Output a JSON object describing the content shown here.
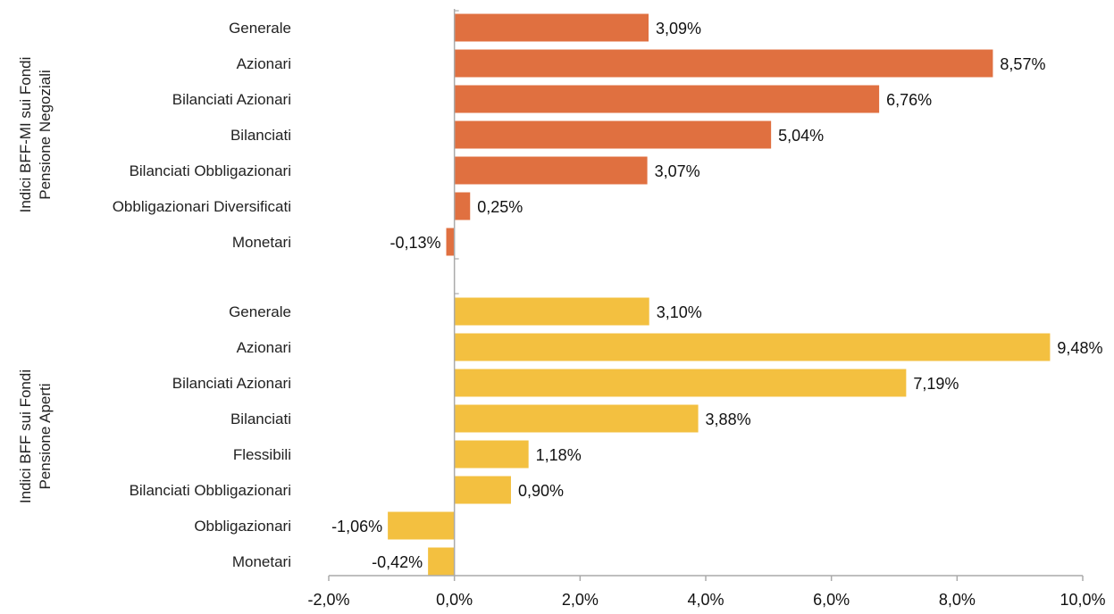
{
  "colors": {
    "group1_bar": "#E07040",
    "group2_bar": "#F3C040",
    "axis": "#aaaaaa"
  },
  "chart_data": {
    "type": "bar",
    "orientation": "horizontal",
    "xlim": [
      -2.0,
      10.0
    ],
    "xticks": [
      -2.0,
      0.0,
      2.0,
      4.0,
      6.0,
      8.0,
      10.0
    ],
    "xtick_labels": [
      "-2,0%",
      "0,0%",
      "2,0%",
      "4,0%",
      "6,0%",
      "8,0%",
      "10,0%"
    ],
    "grid": false,
    "groups": [
      {
        "name_lines": [
          "Indici BFF-MI sui Fondi",
          "Pensione Negoziali"
        ],
        "color": "#E07040",
        "categories": [
          "Generale",
          "Azionari",
          "Bilanciati Azionari",
          "Bilanciati",
          "Bilanciati Obbligazionari",
          "Obbligazionari Diversificati",
          "Monetari"
        ],
        "values": [
          3.09,
          8.57,
          6.76,
          5.04,
          3.07,
          0.25,
          -0.13
        ],
        "value_labels": [
          "3,09%",
          "8,57%",
          "6,76%",
          "5,04%",
          "3,07%",
          "0,25%",
          "-0,13%"
        ]
      },
      {
        "name_lines": [
          "Indici BFF sui Fondi",
          "Pensione Aperti"
        ],
        "color": "#F3C040",
        "categories": [
          "Generale",
          "Azionari",
          "Bilanciati Azionari",
          "Bilanciati",
          "Flessibili",
          "Bilanciati Obbligazionari",
          "Obbligazionari",
          "Monetari"
        ],
        "values": [
          3.1,
          9.48,
          7.19,
          3.88,
          1.18,
          0.9,
          -1.06,
          -0.42
        ],
        "value_labels": [
          "3,10%",
          "9,48%",
          "7,19%",
          "3,88%",
          "1,18%",
          "0,90%",
          "-1,06%",
          "-0,42%"
        ]
      }
    ]
  }
}
